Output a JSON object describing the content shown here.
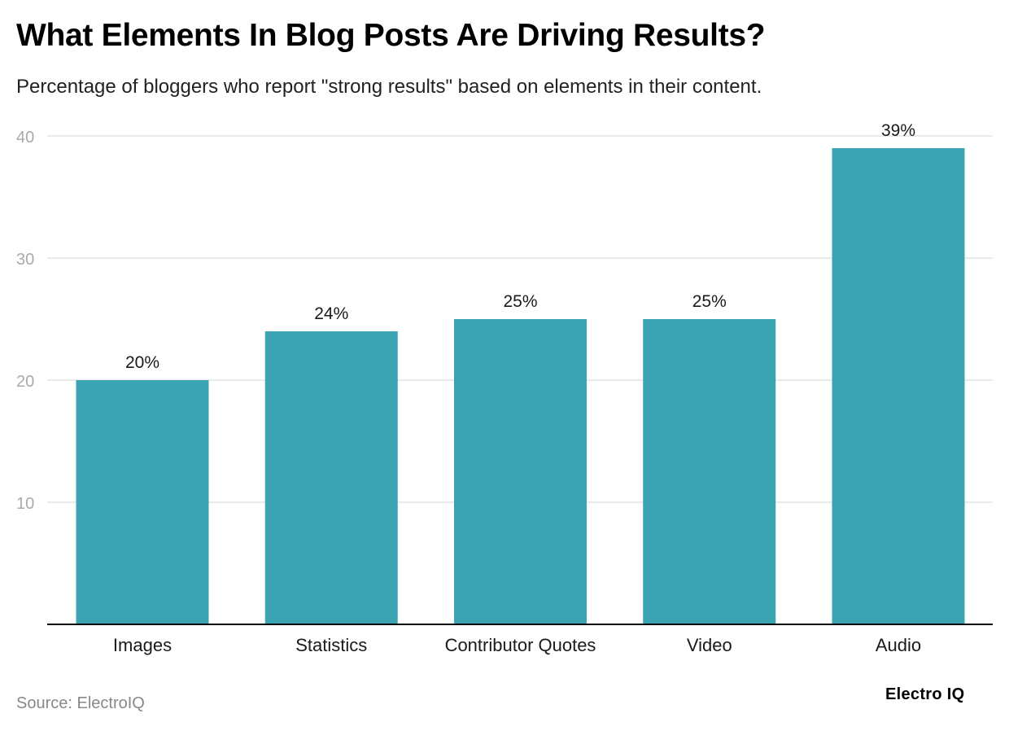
{
  "header": {
    "title": "What Elements In Blog Posts Are Driving Results?",
    "subtitle": "Percentage of bloggers who report \"strong results\" based on elements in their content."
  },
  "footer": {
    "source": "Source: ElectroIQ",
    "brand": "Electro IQ"
  },
  "colors": {
    "bar": "#3ba4b3",
    "grid": "#e3e3e3",
    "axis": "#000000",
    "tick_label": "#aaaaaa"
  },
  "chart_data": {
    "type": "bar",
    "categories": [
      "Images",
      "Statistics",
      "Contributor Quotes",
      "Video",
      "Audio"
    ],
    "values": [
      20,
      24,
      25,
      25,
      39
    ],
    "value_labels": [
      "20%",
      "24%",
      "25%",
      "25%",
      "39%"
    ],
    "yticks": [
      10,
      20,
      30,
      40
    ],
    "ytick_labels": [
      "10",
      "20",
      "30",
      "40"
    ],
    "ylim": [
      0,
      40
    ],
    "grid": true,
    "legend": "none"
  }
}
